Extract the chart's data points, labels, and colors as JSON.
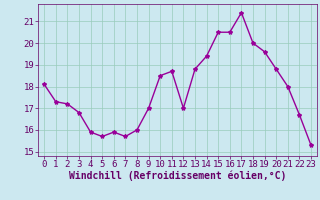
{
  "x": [
    0,
    1,
    2,
    3,
    4,
    5,
    6,
    7,
    8,
    9,
    10,
    11,
    12,
    13,
    14,
    15,
    16,
    17,
    18,
    19,
    20,
    21,
    22,
    23
  ],
  "y": [
    18.1,
    17.3,
    17.2,
    16.8,
    15.9,
    15.7,
    15.9,
    15.7,
    16.0,
    17.0,
    18.5,
    18.7,
    17.0,
    18.8,
    19.4,
    20.5,
    20.5,
    21.4,
    20.0,
    19.6,
    18.8,
    18.0,
    16.7,
    15.3
  ],
  "line_color": "#990099",
  "marker": "*",
  "marker_size": 3,
  "bg_color": "#cce8f0",
  "grid_color": "#99ccbb",
  "xlabel": "Windchill (Refroidissement éolien,°C)",
  "xlabel_fontsize": 7,
  "yticks": [
    15,
    16,
    17,
    18,
    19,
    20,
    21
  ],
  "xticks": [
    0,
    1,
    2,
    3,
    4,
    5,
    6,
    7,
    8,
    9,
    10,
    11,
    12,
    13,
    14,
    15,
    16,
    17,
    18,
    19,
    20,
    21,
    22,
    23
  ],
  "ylim": [
    14.8,
    21.8
  ],
  "xlim": [
    -0.5,
    23.5
  ],
  "tick_fontsize": 6.5,
  "tick_color": "#660066",
  "spine_color": "#660066",
  "linewidth": 1.0
}
